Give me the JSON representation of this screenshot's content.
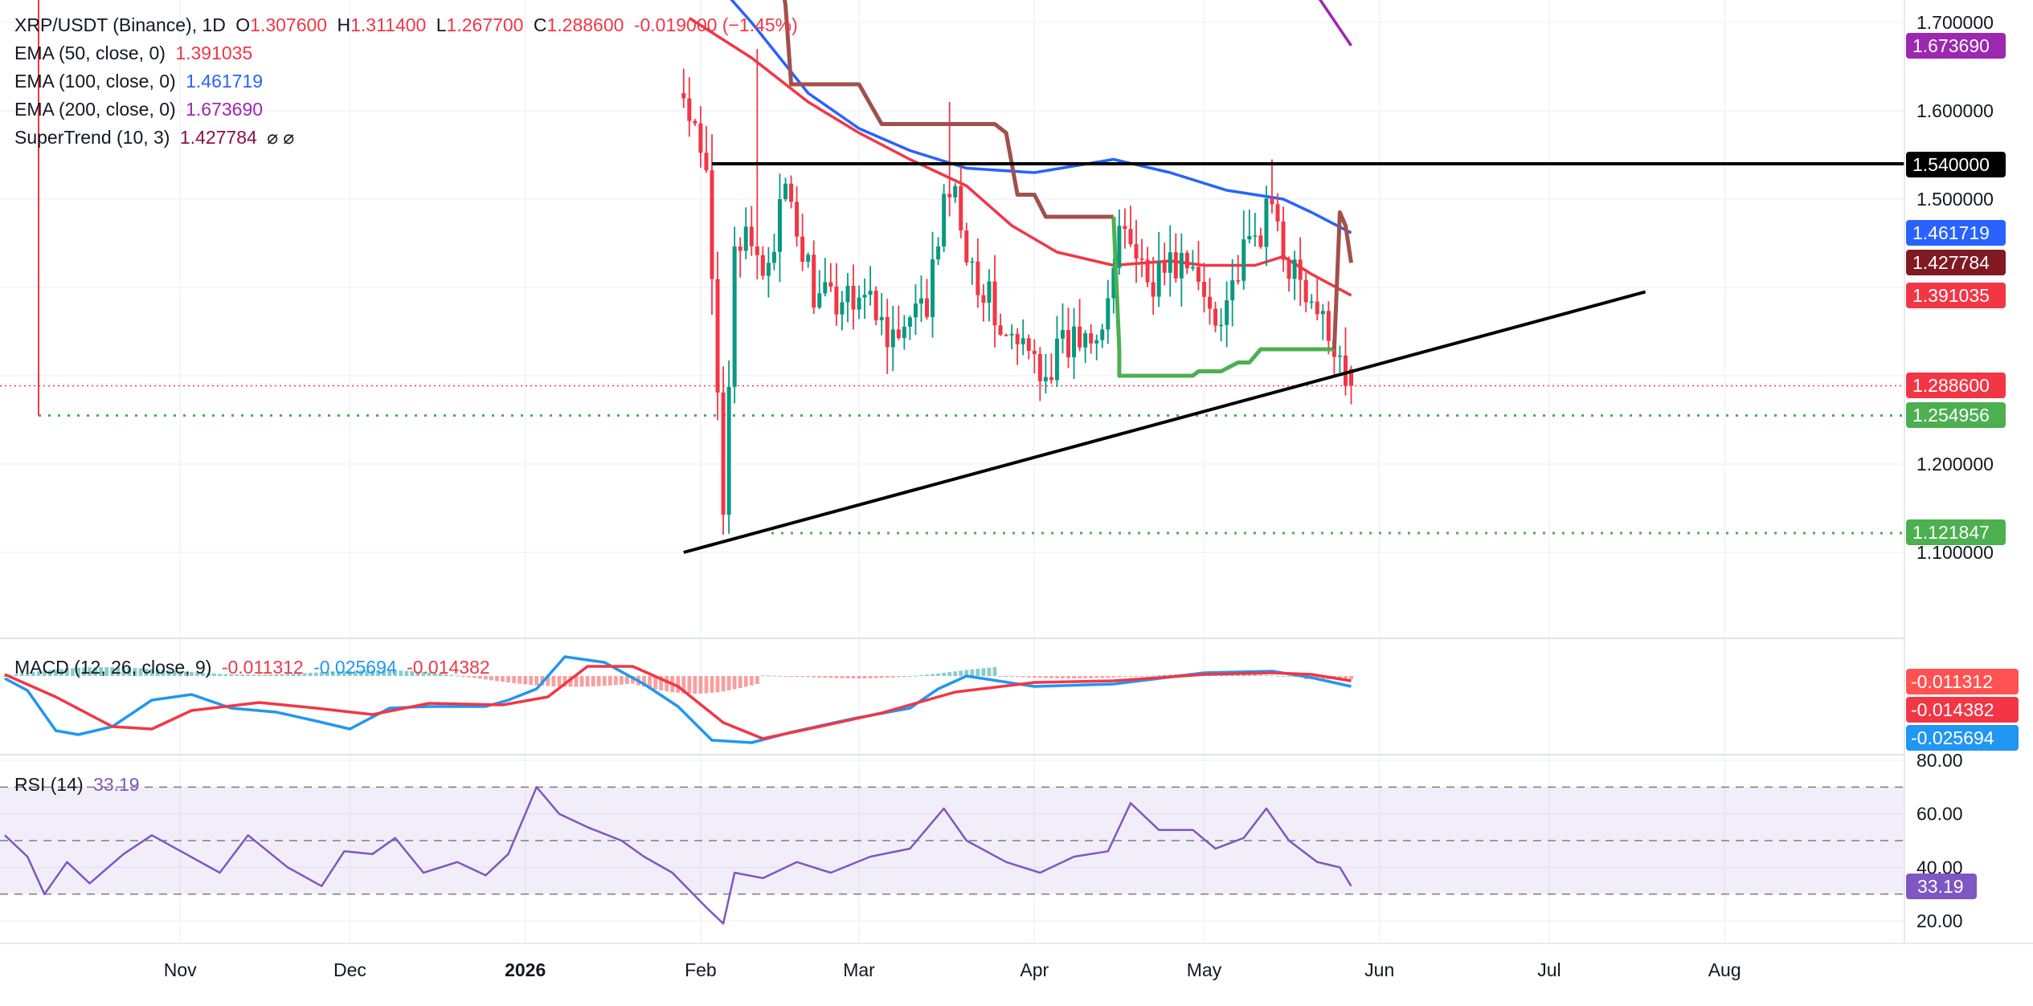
{
  "header": {
    "symbol": "XRP/USDT (Binance), 1D",
    "open_label": "O",
    "open": "1.307600",
    "high_label": "H",
    "high": "1.311400",
    "low_label": "L",
    "low": "1.267700",
    "close_label": "C",
    "close": "1.288600",
    "change": "-0.019000 (−1.45%)"
  },
  "indicators": {
    "ema50": {
      "label": "EMA (50, close, 0)",
      "value": "1.391035",
      "color": "#f23645"
    },
    "ema100": {
      "label": "EMA (100, close, 0)",
      "value": "1.461719",
      "color": "#2962ff"
    },
    "ema200": {
      "label": "EMA (200, close, 0)",
      "value": "1.673690",
      "color": "#9c27b0"
    },
    "supertrend": {
      "label": "SuperTrend (10, 3)",
      "value": "1.427784",
      "icons": "⌀  ⌀",
      "color_down": "#a1504b",
      "color_up": "#4caf50"
    },
    "macd": {
      "label": "MACD (12, 26, close, 9)",
      "hist": "-0.011312",
      "macd": "-0.025694",
      "signal": "-0.014382"
    },
    "rsi": {
      "label": "RSI (14)",
      "value": "33.19"
    }
  },
  "chart_data": {
    "type": "candlestick",
    "price_axis": {
      "ticks": [
        "1.700000",
        "1.600000",
        "1.500000",
        "1.200000",
        "1.100000"
      ],
      "range": [
        1.07,
        1.72
      ]
    },
    "time_axis": {
      "ticks": [
        "Nov",
        "Dec",
        "2026",
        "Feb",
        "Mar",
        "Apr",
        "May",
        "Jun",
        "Jul",
        "Aug"
      ]
    },
    "price_tags": [
      {
        "value": "1.673690",
        "color": "#9c27b0"
      },
      {
        "value": "1.540000",
        "color": "#000000"
      },
      {
        "value": "1.461719",
        "color": "#2962ff"
      },
      {
        "value": "1.427784",
        "color": "#801922"
      },
      {
        "value": "1.391035",
        "color": "#f23645"
      },
      {
        "value": "1.288600",
        "color": "#f23645"
      },
      {
        "value": "1.254956",
        "color": "#4caf50"
      },
      {
        "value": "1.121847",
        "color": "#4caf50"
      }
    ],
    "horizontal_levels": {
      "resistance": 1.54,
      "support_1": 1.254956,
      "support_2": 1.121847,
      "last_price": 1.2886
    },
    "trendline": {
      "from": [
        "2026-01-29",
        1.1
      ],
      "to": [
        "2026-07-18",
        1.395
      ]
    },
    "macd_axis": {
      "tags": [
        {
          "value": "-0.011312",
          "color": "#ff5252"
        },
        {
          "value": "-0.014382",
          "color": "#f23645"
        },
        {
          "value": "-0.025694",
          "color": "#2196f3"
        }
      ]
    },
    "rsi_axis": {
      "ticks": [
        "80.00",
        "60.00",
        "40.00",
        "20.00"
      ],
      "levels": [
        70,
        50,
        30
      ],
      "range": [
        14,
        82
      ],
      "tag": {
        "value": "33.19",
        "color": "#7e57c2"
      }
    }
  }
}
